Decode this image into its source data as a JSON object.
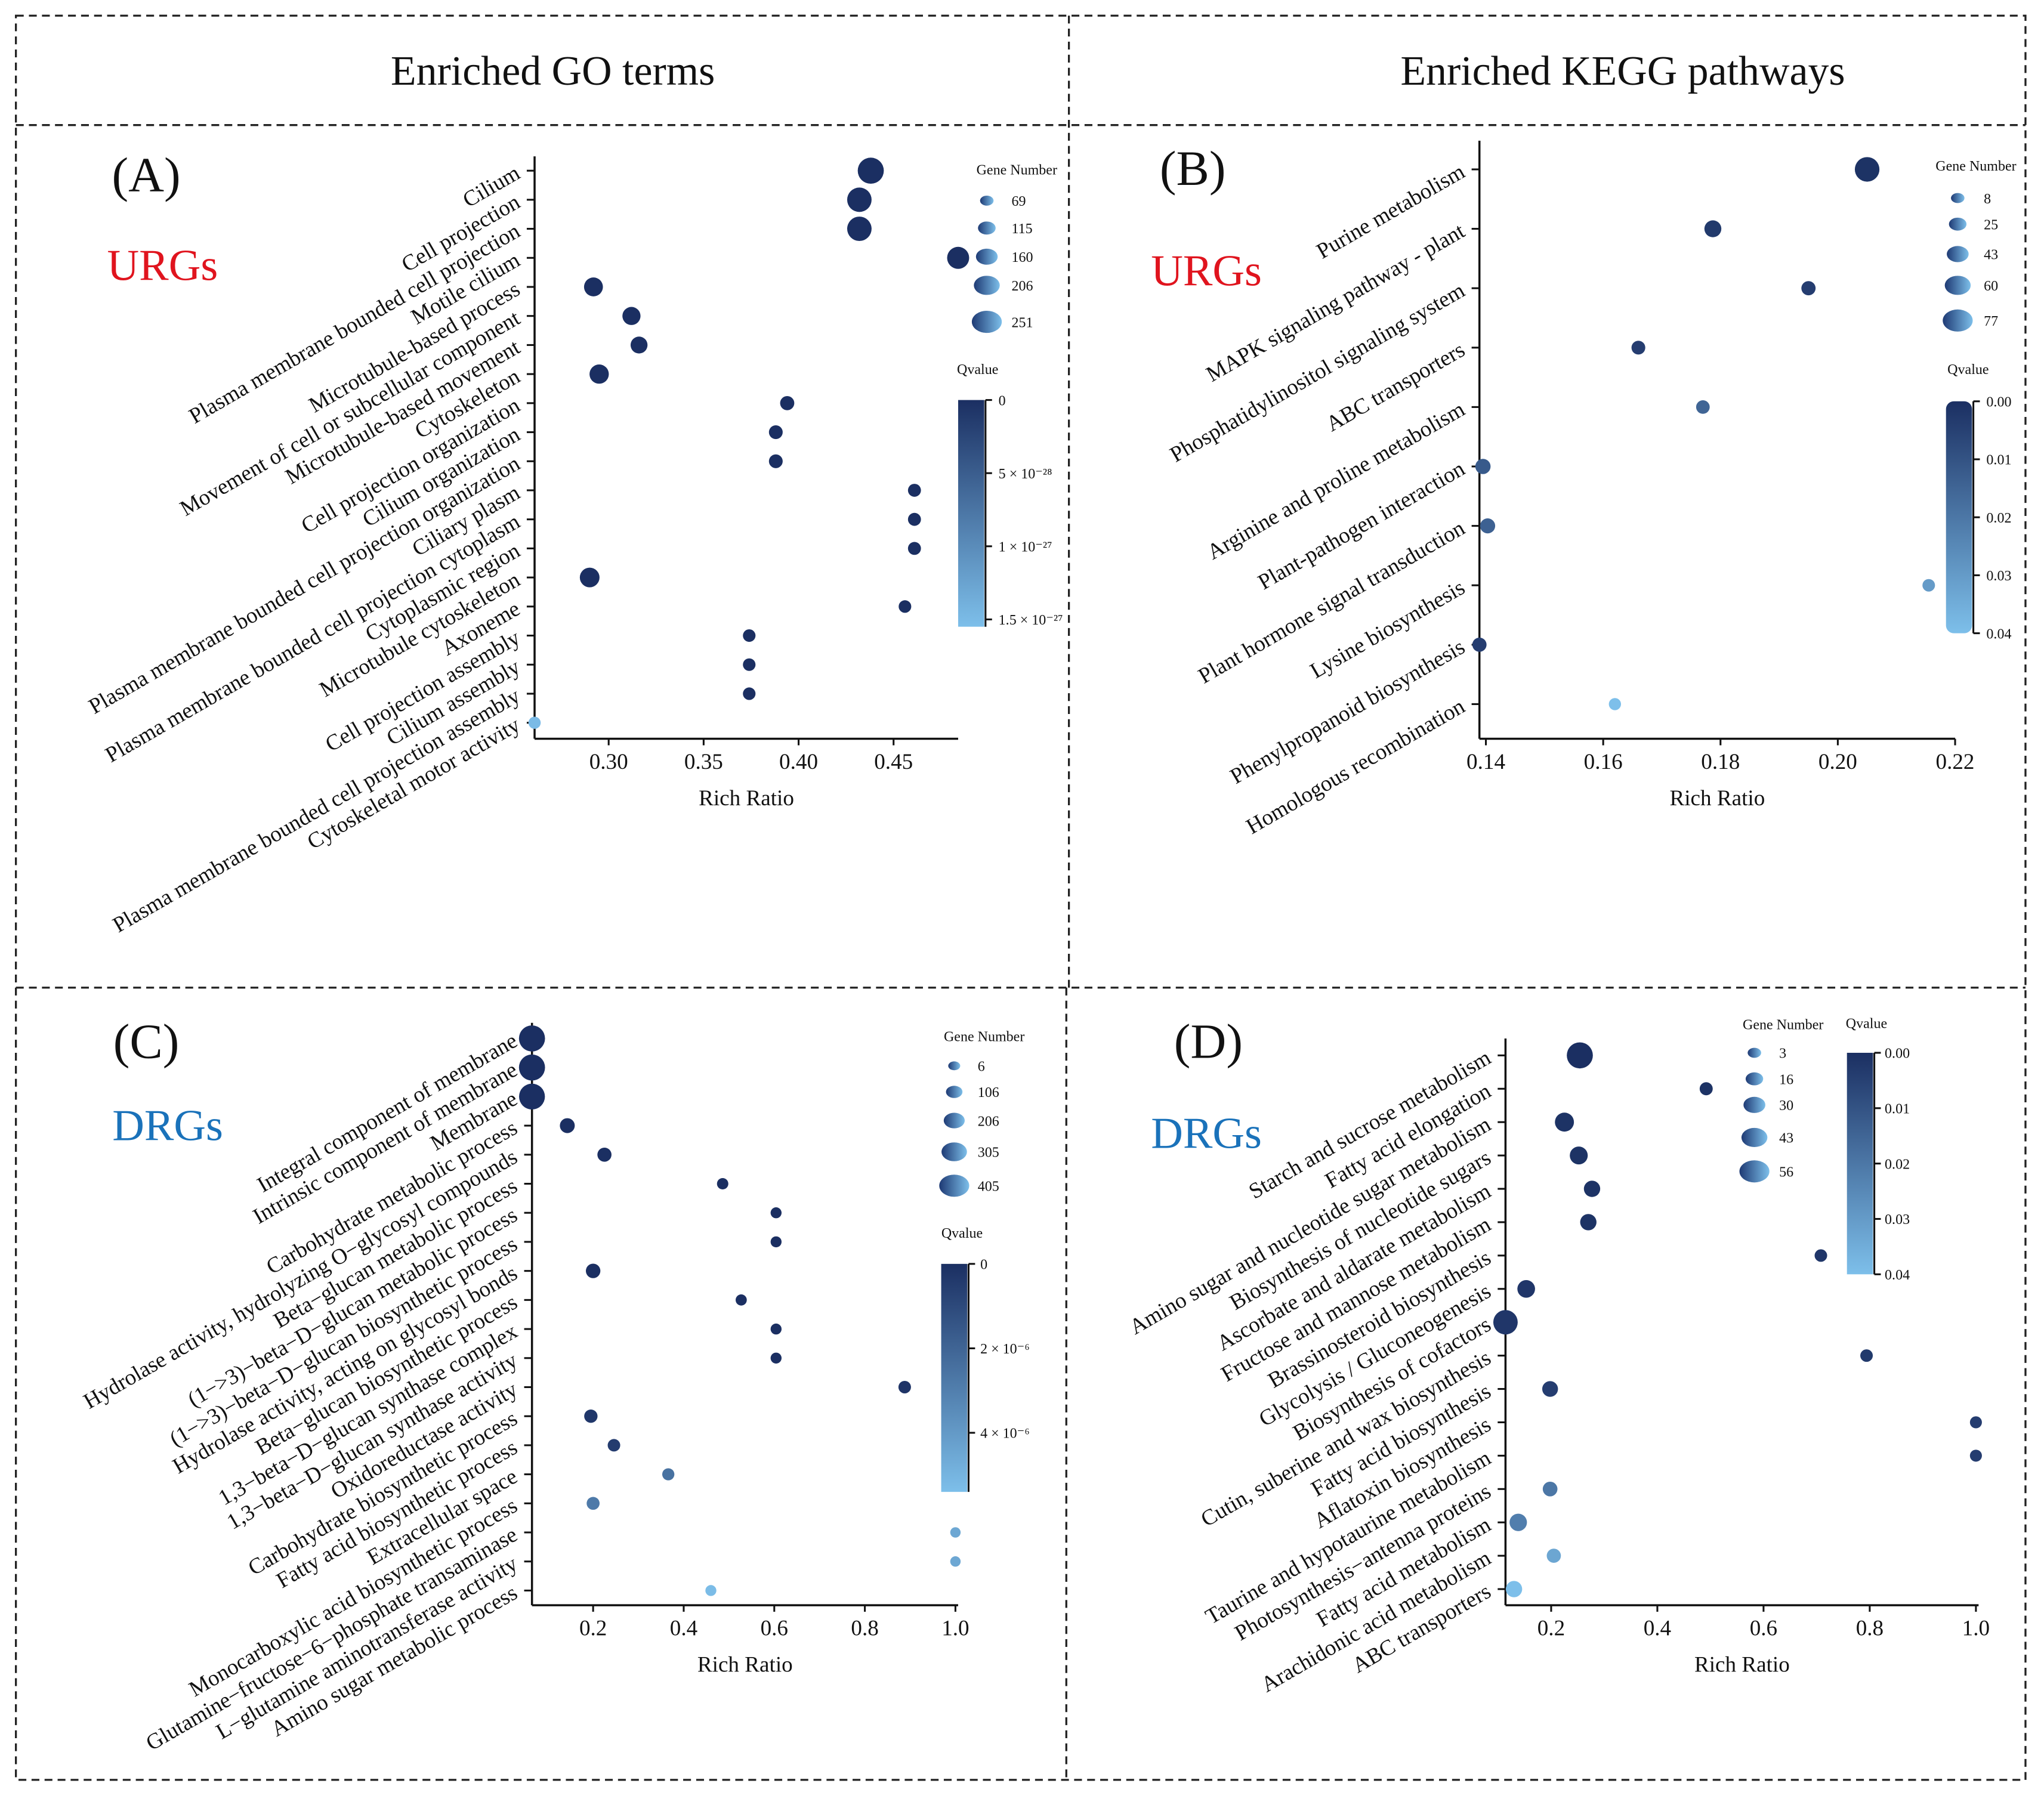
{
  "titles": {
    "go": "Enriched GO terms",
    "kegg": "Enriched KEGG pathways"
  },
  "colors": {
    "urg": "#e0141e",
    "drg": "#1a72ba",
    "q_low": "#1b2f62",
    "q_high": "#7dbfea"
  },
  "chart_data": [
    {
      "id": "A",
      "panel_label": "(A)",
      "group": "URGs",
      "type": "scatter",
      "xlabel": "Rich Ratio",
      "xlim": [
        0.261,
        0.484
      ],
      "xticks": [
        0.3,
        0.35,
        0.4,
        0.45
      ],
      "xtick_labels": [
        "0.30",
        "0.35",
        "0.40",
        "0.45"
      ],
      "size_legend": {
        "title": "Gene Number",
        "values": [
          69,
          115,
          160,
          206,
          251
        ],
        "labels": [
          "69",
          "115",
          "160",
          "206",
          "251"
        ]
      },
      "color_legend": {
        "title": "Qvalue",
        "range": [
          0,
          1.55e-27
        ],
        "ticks": [
          0,
          5e-28,
          1e-27,
          1.5e-27
        ],
        "tick_labels": [
          "0",
          "5 × 10⁻²⁸",
          "1 × 10⁻²⁷",
          "1.5 × 10⁻²⁷"
        ]
      },
      "points": [
        {
          "term": "Cilium",
          "x": 0.438,
          "genes": 251,
          "q": 0
        },
        {
          "term": "Cell projection",
          "x": 0.432,
          "genes": 230,
          "q": 0
        },
        {
          "term": "Plasma membrane bounded cell projection",
          "x": 0.432,
          "genes": 230,
          "q": 0
        },
        {
          "term": "Motile cilium",
          "x": 0.484,
          "genes": 200,
          "q": 0
        },
        {
          "term": "Microtubule-based process",
          "x": 0.292,
          "genes": 160,
          "q": 0
        },
        {
          "term": "Movement of cell or subcellular component",
          "x": 0.312,
          "genes": 150,
          "q": 0
        },
        {
          "term": "Microtubule-based movement",
          "x": 0.316,
          "genes": 135,
          "q": 0
        },
        {
          "term": "Cytoskeleton",
          "x": 0.295,
          "genes": 165,
          "q": 0
        },
        {
          "term": "Cell projection organization",
          "x": 0.394,
          "genes": 100,
          "q": 0
        },
        {
          "term": "Cilium organization",
          "x": 0.388,
          "genes": 95,
          "q": 0
        },
        {
          "term": "Plasma membrane bounded cell projection organization",
          "x": 0.388,
          "genes": 95,
          "q": 0
        },
        {
          "term": "Ciliary plasm",
          "x": 0.461,
          "genes": 85,
          "q": 0
        },
        {
          "term": "Plasma membrane bounded cell projection cytoplasm",
          "x": 0.461,
          "genes": 85,
          "q": 0
        },
        {
          "term": "Cytoplasmic region",
          "x": 0.461,
          "genes": 85,
          "q": 0
        },
        {
          "term": "Microtubule cytoskeleton",
          "x": 0.29,
          "genes": 170,
          "q": 0
        },
        {
          "term": "Axoneme",
          "x": 0.456,
          "genes": 80,
          "q": 0
        },
        {
          "term": "Cell projection assembly",
          "x": 0.374,
          "genes": 80,
          "q": 0
        },
        {
          "term": "Cilium assembly",
          "x": 0.374,
          "genes": 80,
          "q": 0
        },
        {
          "term": "Plasma membrane bounded cell projection assembly",
          "x": 0.374,
          "genes": 80,
          "q": 0
        },
        {
          "term": "Cytoskeletal motor activity",
          "x": 0.261,
          "genes": 75,
          "q": 1.5e-27
        }
      ]
    },
    {
      "id": "B",
      "panel_label": "(B)",
      "group": "URGs",
      "type": "scatter",
      "xlabel": "Rich Ratio",
      "xlim": [
        0.1389,
        0.22
      ],
      "xticks": [
        0.14,
        0.16,
        0.18,
        0.2,
        0.22
      ],
      "xtick_labels": [
        "0.14",
        "0.16",
        "0.18",
        "0.20",
        "0.22"
      ],
      "size_legend": {
        "title": "Gene Number",
        "values": [
          8,
          25,
          43,
          60,
          77
        ],
        "labels": [
          "8",
          "25",
          "43",
          "60",
          "77"
        ]
      },
      "color_legend": {
        "title": "Qvalue",
        "range": [
          0,
          0.04
        ],
        "ticks": [
          0,
          0.01,
          0.02,
          0.03,
          0.04
        ],
        "tick_labels": [
          "0.00",
          "0.01",
          "0.02",
          "0.03",
          "0.04"
        ]
      },
      "points": [
        {
          "term": "Purine metabolism",
          "x": 0.205,
          "genes": 70,
          "q": 0.001
        },
        {
          "term": "MAPK signaling pathway - plant",
          "x": 0.1787,
          "genes": 33,
          "q": 0.003
        },
        {
          "term": "Phosphatidylinositol signaling system",
          "x": 0.195,
          "genes": 20,
          "q": 0.004
        },
        {
          "term": "ABC transporters",
          "x": 0.166,
          "genes": 18,
          "q": 0.004
        },
        {
          "term": "Arginine and proline metabolism",
          "x": 0.177,
          "genes": 17,
          "q": 0.015
        },
        {
          "term": "Plant-pathogen interaction",
          "x": 0.1395,
          "genes": 25,
          "q": 0.012
        },
        {
          "term": "Plant hormone signal transduction",
          "x": 0.1403,
          "genes": 24,
          "q": 0.014
        },
        {
          "term": "Lysine biosynthesis",
          "x": 0.2155,
          "genes": 12,
          "q": 0.03
        },
        {
          "term": "Phenylpropanoid biosynthesis",
          "x": 0.1389,
          "genes": 20,
          "q": 0.004
        },
        {
          "term": "Homologous recombination",
          "x": 0.162,
          "genes": 10,
          "q": 0.04
        }
      ]
    },
    {
      "id": "C",
      "panel_label": "(C)",
      "group": "DRGs",
      "type": "scatter",
      "xlabel": "Rich Ratio",
      "xlim": [
        0.065,
        1.006
      ],
      "xticks": [
        0.2,
        0.4,
        0.6,
        0.8,
        1.0
      ],
      "xtick_labels": [
        "0.2",
        "0.4",
        "0.6",
        "0.8",
        "1.0"
      ],
      "size_legend": {
        "title": "Gene Number",
        "values": [
          6,
          106,
          206,
          305,
          405
        ],
        "labels": [
          "6",
          "106",
          "206",
          "305",
          "405"
        ]
      },
      "color_legend": {
        "title": "Qvalue",
        "range": [
          0,
          5.4e-06
        ],
        "ticks": [
          0,
          2e-06,
          4e-06
        ],
        "tick_labels": [
          "0",
          "2 × 10⁻⁶",
          "4 × 10⁻⁶"
        ]
      },
      "points": [
        {
          "term": "Integral component of membrane",
          "x": 0.065,
          "genes": 405,
          "q": 0
        },
        {
          "term": "Intrinsic component of membrane",
          "x": 0.065,
          "genes": 405,
          "q": 0
        },
        {
          "term": "Membrane",
          "x": 0.065,
          "genes": 400,
          "q": 0
        },
        {
          "term": "Carbohydrate metabolic process",
          "x": 0.143,
          "genes": 120,
          "q": 0
        },
        {
          "term": "Hydrolase activity, hydrolyzing O−glycosyl compounds",
          "x": 0.225,
          "genes": 100,
          "q": 0
        },
        {
          "term": "Beta−glucan metabolic process",
          "x": 0.486,
          "genes": 30,
          "q": 0
        },
        {
          "term": "(1−>3)−beta−D−glucan metabolic process",
          "x": 0.604,
          "genes": 20,
          "q": 0
        },
        {
          "term": "(1−>3)−beta−D−glucan biosynthetic process",
          "x": 0.604,
          "genes": 20,
          "q": 0
        },
        {
          "term": "Hydrolase activity, acting on glycosyl bonds",
          "x": 0.2,
          "genes": 110,
          "q": 0
        },
        {
          "term": "Beta−glucan biosynthetic process",
          "x": 0.527,
          "genes": 25,
          "q": 0
        },
        {
          "term": "1,3−beta−D−glucan synthase complex",
          "x": 0.604,
          "genes": 20,
          "q": 0
        },
        {
          "term": "1,3−beta−D−glucan synthase activity",
          "x": 0.604,
          "genes": 20,
          "q": 0
        },
        {
          "term": "Oxidoreductase activity",
          "x": 0.888,
          "genes": 60,
          "q": 2e-07
        },
        {
          "term": "Carbohydrate biosynthetic process",
          "x": 0.195,
          "genes": 80,
          "q": 3e-07
        },
        {
          "term": "Fatty acid biosynthetic process",
          "x": 0.246,
          "genes": 60,
          "q": 5e-07
        },
        {
          "term": "Extracellular space",
          "x": 0.366,
          "genes": 50,
          "q": 2.5e-06
        },
        {
          "term": "Monocarboxylic acid biosynthetic process",
          "x": 0.2,
          "genes": 70,
          "q": 2.8e-06
        },
        {
          "term": "Glutamine−fructose−6−phosphate transaminase",
          "x": 1.0,
          "genes": 6,
          "q": 4.5e-06
        },
        {
          "term": "L−glutamine aminotransferase activity",
          "x": 1.0,
          "genes": 6,
          "q": 4.5e-06
        },
        {
          "term": "Amino sugar metabolic process",
          "x": 0.46,
          "genes": 20,
          "q": 5.3e-06
        }
      ]
    },
    {
      "id": "D",
      "panel_label": "(D)",
      "group": "DRGs",
      "type": "scatter",
      "xlabel": "Rich Ratio",
      "xlim": [
        0.114,
        1.005
      ],
      "xticks": [
        0.2,
        0.4,
        0.6,
        0.8,
        1.0
      ],
      "xtick_labels": [
        "0.2",
        "0.4",
        "0.6",
        "0.8",
        "1.0"
      ],
      "size_legend": {
        "title": "Gene Number",
        "values": [
          3,
          16,
          30,
          43,
          56
        ],
        "labels": [
          "3",
          "16",
          "30",
          "43",
          "56"
        ]
      },
      "color_legend": {
        "title": "Qvalue",
        "range": [
          0,
          0.04
        ],
        "ticks": [
          0,
          0.01,
          0.02,
          0.03,
          0.04
        ],
        "tick_labels": [
          "0.00",
          "0.01",
          "0.02",
          "0.03",
          "0.04"
        ]
      },
      "points": [
        {
          "term": "Starch and sucrose metabolism",
          "x": 0.254,
          "genes": 56,
          "q": 0
        },
        {
          "term": "Fatty acid elongation",
          "x": 0.492,
          "genes": 8,
          "q": 0.001
        },
        {
          "term": "Amino sugar and nucleotide sugar metabolism",
          "x": 0.225,
          "genes": 30,
          "q": 0.001
        },
        {
          "term": "Biosynthesis of nucleotide sugars",
          "x": 0.252,
          "genes": 26,
          "q": 0.001
        },
        {
          "term": "Ascorbate and aldarate metabolism",
          "x": 0.277,
          "genes": 20,
          "q": 0.001
        },
        {
          "term": "Fructose and mannose metabolism",
          "x": 0.27,
          "genes": 20,
          "q": 0.001
        },
        {
          "term": "Brassinosteroid biosynthesis",
          "x": 0.708,
          "genes": 6,
          "q": 0.002
        },
        {
          "term": "Glycolysis / Gluconeogenesis",
          "x": 0.153,
          "genes": 25,
          "q": 0.002
        },
        {
          "term": "Biosynthesis of cofactors",
          "x": 0.114,
          "genes": 50,
          "q": 0.002
        },
        {
          "term": "Cutin, suberine and wax biosynthesis",
          "x": 0.794,
          "genes": 6,
          "q": 0.003
        },
        {
          "term": "Fatty acid biosynthesis",
          "x": 0.198,
          "genes": 18,
          "q": 0.004
        },
        {
          "term": "Aflatoxin biosynthesis",
          "x": 1.0,
          "genes": 4,
          "q": 0.004
        },
        {
          "term": "Taurine and hypotaurine metabolism",
          "x": 1.0,
          "genes": 4,
          "q": 0.004
        },
        {
          "term": "Photosynthesis−antenna proteins",
          "x": 0.198,
          "genes": 14,
          "q": 0.02
        },
        {
          "term": "Fatty acid metabolism",
          "x": 0.138,
          "genes": 24,
          "q": 0.022
        },
        {
          "term": "Arachidonic acid metabolism",
          "x": 0.205,
          "genes": 12,
          "q": 0.033
        },
        {
          "term": "ABC transporters",
          "x": 0.13,
          "genes": 20,
          "q": 0.04
        }
      ]
    }
  ]
}
